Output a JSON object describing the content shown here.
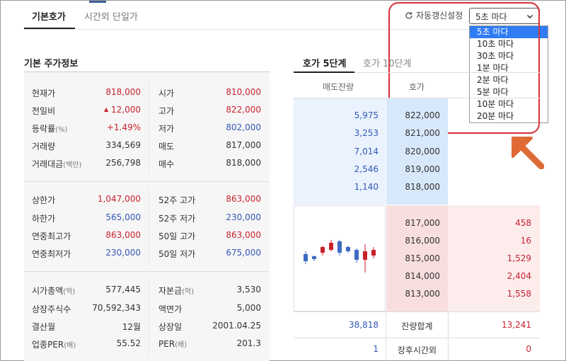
{
  "tabs": {
    "basic": "기본호가",
    "after_hours": "시간외 단일가"
  },
  "refresh": {
    "label": "자동갱신설정",
    "selected": "5초 마다",
    "options": [
      "5초 마다",
      "10초 마다",
      "30초 마다",
      "1분 마다",
      "2분 마다",
      "5분 마다",
      "10분 마다",
      "20분 마다"
    ]
  },
  "stock_info": {
    "title": "기본 주가정보",
    "group1": [
      {
        "label": "현재가",
        "value": "818,000",
        "label2": "시가",
        "value2": "810,000"
      },
      {
        "label": "전일비",
        "value": "12,000",
        "label2": "고가",
        "value2": "822,000"
      },
      {
        "label": "등락률",
        "unit": "(%)",
        "value": "+1.49%",
        "label2": "저가",
        "value2": "802,000"
      },
      {
        "label": "거래량",
        "value": "334,569",
        "label2": "매도",
        "value2": "817,000"
      },
      {
        "label": "거래대금",
        "unit": "(백만)",
        "value": "256,798",
        "label2": "매수",
        "value2": "818,000"
      }
    ],
    "group2": [
      {
        "label": "상한가",
        "value": "1,047,000",
        "label2": "52주 고가",
        "value2": "863,000"
      },
      {
        "label": "하한가",
        "value": "565,000",
        "label2": "52주 저가",
        "value2": "230,000"
      },
      {
        "label": "연중최고가",
        "value": "863,000",
        "label2": "50일 고가",
        "value2": "863,000"
      },
      {
        "label": "연중최저가",
        "value": "230,000",
        "label2": "50일 저가",
        "value2": "675,000"
      }
    ],
    "group3": [
      {
        "label": "시가총액",
        "unit": "(억)",
        "value": "577,445",
        "label2": "자본금",
        "unit2": "(억)",
        "value2": "3,530"
      },
      {
        "label": "상장주식수",
        "value": "70,592,343",
        "label2": "액면가",
        "value2": "5,000"
      },
      {
        "label": "결산월",
        "value": "12월",
        "label2": "상장일",
        "value2": "2001.04.25"
      },
      {
        "label": "업종PER",
        "unit": "(배)",
        "value": "55.52",
        "label2": "PER",
        "unit2": "(배)",
        "value2": "201.3"
      }
    ]
  },
  "orderbook": {
    "tab5": "호가 5단계",
    "tab10": "호가 10단계",
    "head_ask": "매도잔량",
    "head_price": "호가",
    "asks": [
      {
        "qty": "5,975",
        "price": "822,000"
      },
      {
        "qty": "3,253",
        "price": "821,000"
      },
      {
        "qty": "7,014",
        "price": "820,000"
      },
      {
        "qty": "2,546",
        "price": "819,000"
      },
      {
        "qty": "1,140",
        "price": "818,000"
      }
    ],
    "bids": [
      {
        "price": "817,000",
        "qty": "458"
      },
      {
        "price": "816,000",
        "qty": "16"
      },
      {
        "price": "815,000",
        "qty": "1,529"
      },
      {
        "price": "814,000",
        "qty": "2,404"
      },
      {
        "price": "813,000",
        "qty": "1,558"
      }
    ],
    "total_label": "잔량합계",
    "total_ask": "38,818",
    "total_bid": "13,241",
    "after_label": "장후시간외",
    "after_ask": "1",
    "after_bid": "0"
  }
}
